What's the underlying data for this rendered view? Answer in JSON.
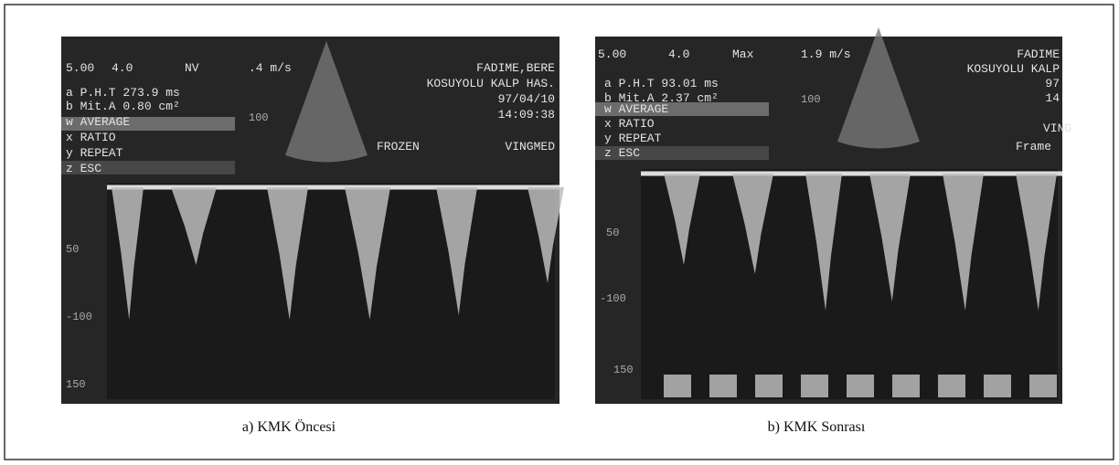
{
  "panels": [
    {
      "caption": "a) KMK Öncesi",
      "overlay": [
        "5.00",
        "4.0",
        "NV",
        ".4 m/s",
        "FADIME,BERE",
        "KOSUYOLU KALP HAS.",
        "97/04/10",
        "14:09:38",
        "a P.H.T 273.9 ms",
        "b Mit.A 0.80 cm²",
        "w AVERAGE",
        "x RATIO",
        "y REPEAT",
        "z ESC",
        "FROZEN",
        "VINGMED"
      ],
      "scale": [
        "100",
        "50",
        "-100",
        "150"
      ]
    },
    {
      "caption": "b) KMK Sonrası",
      "overlay": [
        "5.00",
        "4.0",
        "Max",
        "1.9 m/s",
        "FADIME",
        "KOSUYOLU KALP",
        "97",
        "14",
        "a P.H.T 93.01 ms",
        "b Mit.A 2.37 cm²",
        "w AVERAGE",
        "x RATIO",
        "y REPEAT",
        "z ESC",
        "VING",
        "Frame"
      ],
      "scale": [
        "100",
        "50",
        "-100",
        "150"
      ]
    }
  ]
}
